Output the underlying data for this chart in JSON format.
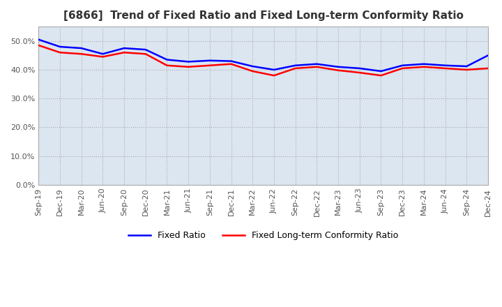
{
  "title": "[6866]  Trend of Fixed Ratio and Fixed Long-term Conformity Ratio",
  "title_fontsize": 11,
  "xlabels": [
    "Sep-19",
    "Dec-19",
    "Mar-20",
    "Jun-20",
    "Sep-20",
    "Dec-20",
    "Mar-21",
    "Jun-21",
    "Sep-21",
    "Dec-21",
    "Mar-22",
    "Jun-22",
    "Sep-22",
    "Dec-22",
    "Mar-23",
    "Jun-23",
    "Sep-23",
    "Dec-23",
    "Mar-24",
    "Jun-24",
    "Sep-24",
    "Dec-24"
  ],
  "fixed_ratio": [
    50.5,
    48.0,
    47.5,
    45.5,
    47.5,
    47.0,
    43.5,
    42.8,
    43.2,
    43.0,
    41.2,
    40.0,
    41.5,
    42.0,
    41.0,
    40.5,
    39.5,
    41.5,
    42.0,
    41.5,
    41.2,
    45.0
  ],
  "fixed_lt_ratio": [
    48.5,
    46.0,
    45.5,
    44.5,
    46.0,
    45.5,
    41.5,
    41.0,
    41.5,
    42.0,
    39.5,
    38.0,
    40.5,
    41.0,
    39.8,
    39.0,
    38.0,
    40.5,
    41.0,
    40.5,
    40.0,
    40.5
  ],
  "fixed_ratio_color": "#0000ff",
  "fixed_lt_ratio_color": "#ff0000",
  "ylim": [
    0.0,
    55.0
  ],
  "yticks": [
    0.0,
    10.0,
    20.0,
    30.0,
    40.0,
    50.0
  ],
  "plot_bg_color": "#dce6f1",
  "background_color": "#ffffff",
  "grid_color": "#aaaaaa",
  "legend_labels": [
    "Fixed Ratio",
    "Fixed Long-term Conformity Ratio"
  ]
}
